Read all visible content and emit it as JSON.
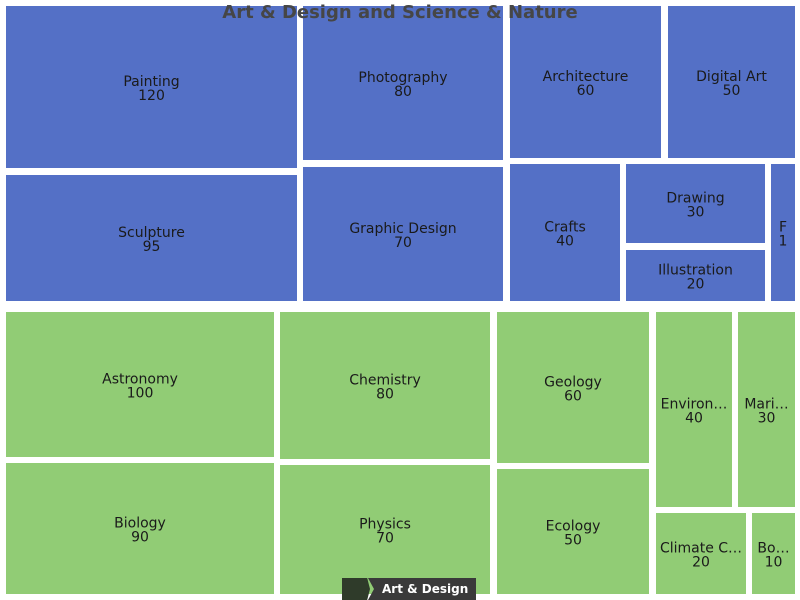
{
  "title": "Art & Design and Science & Nature",
  "breadcrumb": {
    "current": "Art & Design"
  },
  "colors": {
    "art": "#5470c6",
    "science": "#91cc75",
    "border": "#ffffff",
    "label": "#1a1a1a"
  },
  "chart_data": {
    "type": "treemap",
    "title": "Art & Design and Science & Nature",
    "groups": [
      {
        "name": "Art & Design",
        "color": "#5470c6",
        "children": [
          {
            "name": "Painting",
            "value": 120
          },
          {
            "name": "Sculpture",
            "value": 95
          },
          {
            "name": "Photography",
            "value": 80
          },
          {
            "name": "Graphic Design",
            "value": 70
          },
          {
            "name": "Architecture",
            "value": 60
          },
          {
            "name": "Digital Art",
            "value": 50
          },
          {
            "name": "Crafts",
            "value": 40
          },
          {
            "name": "Drawing",
            "value": 30
          },
          {
            "name": "Illustration",
            "value": 20
          },
          {
            "name": "F",
            "value": 1
          }
        ]
      },
      {
        "name": "Science & Nature",
        "color": "#91cc75",
        "children": [
          {
            "name": "Astronomy",
            "value": 100
          },
          {
            "name": "Biology",
            "value": 90
          },
          {
            "name": "Chemistry",
            "value": 80
          },
          {
            "name": "Physics",
            "value": 70
          },
          {
            "name": "Geology",
            "value": 60
          },
          {
            "name": "Ecology",
            "value": 50
          },
          {
            "name": "Environ…",
            "value": 40
          },
          {
            "name": "Mari…",
            "value": 30
          },
          {
            "name": "Climate C…",
            "value": 20
          },
          {
            "name": "Bo…",
            "value": 10
          }
        ]
      }
    ]
  }
}
